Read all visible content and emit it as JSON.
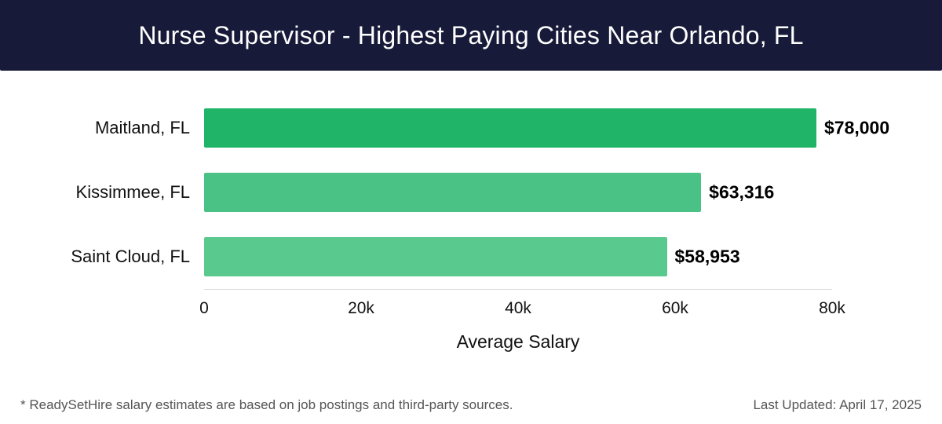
{
  "header": {
    "title": "Nurse Supervisor - Highest Paying Cities Near Orlando, FL"
  },
  "chart_data": {
    "type": "bar",
    "orientation": "horizontal",
    "title": "Nurse Supervisor - Highest Paying Cities Near Orlando, FL",
    "categories": [
      "Maitland, FL",
      "Kissimmee, FL",
      "Saint Cloud, FL"
    ],
    "values": [
      78000,
      63316,
      58953
    ],
    "value_labels": [
      "$78,000",
      "$63,316",
      "$58,953"
    ],
    "bar_colors": [
      "#1fb468",
      "#4ac285",
      "#5ac98e"
    ],
    "xlabel": "Average Salary",
    "ylabel": "",
    "xlim": [
      0,
      80000
    ],
    "xticks": [
      0,
      20000,
      40000,
      60000,
      80000
    ],
    "xtick_labels": [
      "0",
      "20k",
      "40k",
      "60k",
      "80k"
    ],
    "grid": false,
    "legend": false
  },
  "footer": {
    "note": "* ReadySetHire salary estimates are based on job postings and third-party sources.",
    "last_updated": "Last Updated: April 17, 2025"
  },
  "colors": {
    "header_bg": "#171b39",
    "title_text": "#ffffff",
    "value_text": "#000000",
    "axis_text": "#111111",
    "footer_text": "#555555"
  }
}
